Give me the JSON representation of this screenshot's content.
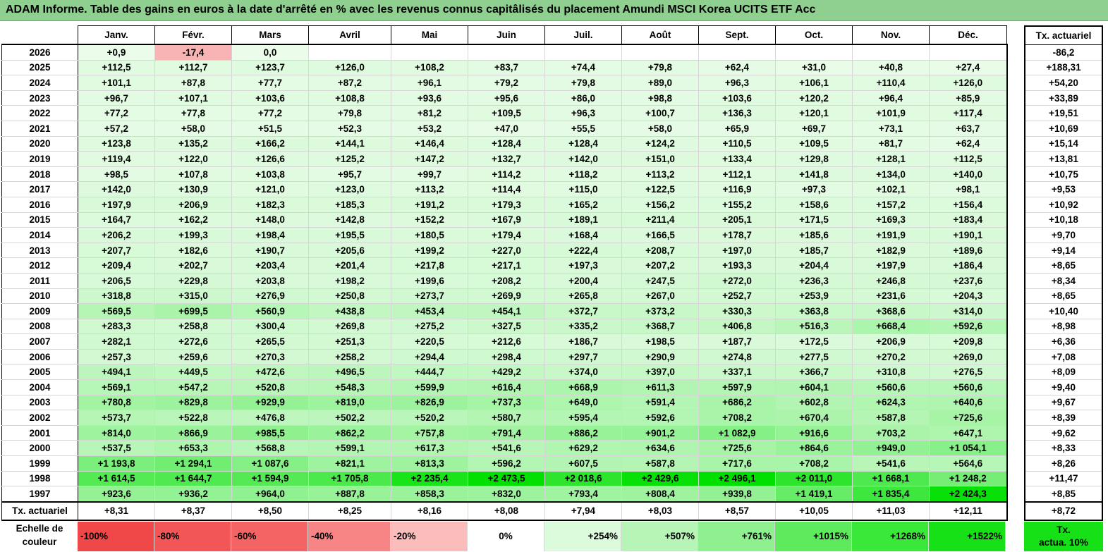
{
  "title": "ADAM Informe. Table des gains en euros à la date d'arrêté en % avec les revenus connus capitâlisés du placement Amundi MSCI Korea UCITS ETF Acc",
  "months": [
    "Janv.",
    "Févr.",
    "Mars",
    "Avril",
    "Mai",
    "Juin",
    "Juil.",
    "Août",
    "Sept.",
    "Oct.",
    "Nov.",
    "Déc."
  ],
  "actuarial_header": "Tx. actuariel",
  "colors": {
    "title_bg": "#8fcf8f",
    "negative": "#f8b4b4"
  },
  "rows": [
    {
      "year": "2026",
      "cells": [
        "+0,9",
        "-17,4",
        "0,0",
        "",
        "",
        "",
        "",
        "",
        "",
        "",
        "",
        ""
      ],
      "rate": "-86,2"
    },
    {
      "year": "2025",
      "cells": [
        "+112,5",
        "+112,7",
        "+123,7",
        "+126,0",
        "+108,2",
        "+83,7",
        "+74,4",
        "+79,8",
        "+62,4",
        "+31,0",
        "+40,8",
        "+27,4"
      ],
      "rate": "+188,31"
    },
    {
      "year": "2024",
      "cells": [
        "+101,1",
        "+87,8",
        "+77,7",
        "+87,2",
        "+96,1",
        "+79,2",
        "+79,8",
        "+89,0",
        "+96,3",
        "+106,1",
        "+110,4",
        "+126,0"
      ],
      "rate": "+54,20"
    },
    {
      "year": "2023",
      "cells": [
        "+96,7",
        "+107,1",
        "+103,6",
        "+108,8",
        "+93,6",
        "+95,6",
        "+86,0",
        "+98,8",
        "+103,6",
        "+120,2",
        "+96,4",
        "+85,9"
      ],
      "rate": "+33,89"
    },
    {
      "year": "2022",
      "cells": [
        "+77,2",
        "+77,8",
        "+77,2",
        "+79,8",
        "+81,2",
        "+109,5",
        "+96,3",
        "+100,7",
        "+136,3",
        "+120,1",
        "+101,9",
        "+117,4"
      ],
      "rate": "+19,51"
    },
    {
      "year": "2021",
      "cells": [
        "+57,2",
        "+58,0",
        "+51,5",
        "+52,3",
        "+53,2",
        "+47,0",
        "+55,5",
        "+58,0",
        "+65,9",
        "+69,7",
        "+73,1",
        "+63,7"
      ],
      "rate": "+10,69"
    },
    {
      "year": "2020",
      "cells": [
        "+123,8",
        "+135,2",
        "+166,2",
        "+144,1",
        "+146,4",
        "+128,4",
        "+128,4",
        "+124,2",
        "+110,5",
        "+109,5",
        "+81,7",
        "+62,4"
      ],
      "rate": "+15,14"
    },
    {
      "year": "2019",
      "cells": [
        "+119,4",
        "+122,0",
        "+126,6",
        "+125,2",
        "+147,2",
        "+132,7",
        "+142,0",
        "+151,0",
        "+133,4",
        "+129,8",
        "+128,1",
        "+112,5"
      ],
      "rate": "+13,81"
    },
    {
      "year": "2018",
      "cells": [
        "+98,5",
        "+107,8",
        "+103,8",
        "+95,7",
        "+99,7",
        "+114,2",
        "+118,2",
        "+113,2",
        "+112,1",
        "+141,8",
        "+134,0",
        "+140,0"
      ],
      "rate": "+10,75"
    },
    {
      "year": "2017",
      "cells": [
        "+142,0",
        "+130,9",
        "+121,0",
        "+123,0",
        "+113,2",
        "+114,4",
        "+115,0",
        "+122,5",
        "+116,9",
        "+97,3",
        "+102,1",
        "+98,1"
      ],
      "rate": "+9,53"
    },
    {
      "year": "2016",
      "cells": [
        "+197,9",
        "+206,9",
        "+182,3",
        "+185,3",
        "+191,2",
        "+179,3",
        "+165,2",
        "+156,2",
        "+155,2",
        "+158,6",
        "+157,2",
        "+156,4"
      ],
      "rate": "+10,92"
    },
    {
      "year": "2015",
      "cells": [
        "+164,7",
        "+162,2",
        "+148,0",
        "+142,8",
        "+152,2",
        "+167,9",
        "+189,1",
        "+211,4",
        "+205,1",
        "+171,5",
        "+169,3",
        "+183,4"
      ],
      "rate": "+10,18"
    },
    {
      "year": "2014",
      "cells": [
        "+206,2",
        "+199,3",
        "+198,4",
        "+195,5",
        "+180,5",
        "+179,4",
        "+168,4",
        "+166,5",
        "+178,7",
        "+185,6",
        "+191,9",
        "+190,1"
      ],
      "rate": "+9,70"
    },
    {
      "year": "2013",
      "cells": [
        "+207,7",
        "+182,6",
        "+190,7",
        "+205,6",
        "+199,2",
        "+227,0",
        "+222,4",
        "+208,7",
        "+197,0",
        "+185,7",
        "+182,9",
        "+189,6"
      ],
      "rate": "+9,14"
    },
    {
      "year": "2012",
      "cells": [
        "+209,4",
        "+202,7",
        "+203,4",
        "+201,4",
        "+217,8",
        "+217,1",
        "+197,3",
        "+207,2",
        "+193,3",
        "+204,4",
        "+197,9",
        "+186,4"
      ],
      "rate": "+8,65"
    },
    {
      "year": "2011",
      "cells": [
        "+206,5",
        "+229,8",
        "+203,8",
        "+198,2",
        "+199,6",
        "+208,2",
        "+200,4",
        "+247,5",
        "+272,0",
        "+236,3",
        "+246,8",
        "+237,6"
      ],
      "rate": "+8,34"
    },
    {
      "year": "2010",
      "cells": [
        "+318,8",
        "+315,0",
        "+276,9",
        "+250,8",
        "+273,7",
        "+269,9",
        "+265,8",
        "+267,0",
        "+252,7",
        "+253,9",
        "+231,6",
        "+204,3"
      ],
      "rate": "+8,65"
    },
    {
      "year": "2009",
      "cells": [
        "+569,5",
        "+699,5",
        "+560,9",
        "+438,8",
        "+453,4",
        "+454,1",
        "+372,7",
        "+373,2",
        "+330,3",
        "+363,8",
        "+368,6",
        "+314,0"
      ],
      "rate": "+10,40"
    },
    {
      "year": "2008",
      "cells": [
        "+283,3",
        "+258,8",
        "+300,4",
        "+269,8",
        "+275,2",
        "+327,5",
        "+335,2",
        "+368,7",
        "+406,8",
        "+516,3",
        "+668,4",
        "+592,6"
      ],
      "rate": "+8,98"
    },
    {
      "year": "2007",
      "cells": [
        "+282,1",
        "+272,6",
        "+265,5",
        "+251,3",
        "+220,5",
        "+212,6",
        "+186,7",
        "+198,5",
        "+187,7",
        "+172,5",
        "+206,9",
        "+209,8"
      ],
      "rate": "+6,36"
    },
    {
      "year": "2006",
      "cells": [
        "+257,3",
        "+259,6",
        "+270,3",
        "+258,2",
        "+294,4",
        "+298,4",
        "+297,7",
        "+290,9",
        "+274,8",
        "+277,5",
        "+270,2",
        "+269,0"
      ],
      "rate": "+7,08"
    },
    {
      "year": "2005",
      "cells": [
        "+494,1",
        "+449,5",
        "+472,6",
        "+496,5",
        "+444,7",
        "+429,2",
        "+374,0",
        "+397,0",
        "+337,1",
        "+366,7",
        "+310,8",
        "+276,5"
      ],
      "rate": "+8,09"
    },
    {
      "year": "2004",
      "cells": [
        "+569,1",
        "+547,2",
        "+520,8",
        "+548,3",
        "+599,9",
        "+616,4",
        "+668,9",
        "+611,3",
        "+597,9",
        "+604,1",
        "+560,6",
        "+560,6"
      ],
      "rate": "+9,40"
    },
    {
      "year": "2003",
      "cells": [
        "+780,8",
        "+829,8",
        "+929,9",
        "+819,0",
        "+826,9",
        "+737,3",
        "+649,0",
        "+591,4",
        "+686,2",
        "+602,8",
        "+624,3",
        "+640,6"
      ],
      "rate": "+9,67"
    },
    {
      "year": "2002",
      "cells": [
        "+573,7",
        "+522,8",
        "+476,8",
        "+502,2",
        "+520,2",
        "+580,7",
        "+595,4",
        "+592,6",
        "+708,2",
        "+670,4",
        "+587,8",
        "+725,6"
      ],
      "rate": "+8,39"
    },
    {
      "year": "2001",
      "cells": [
        "+814,0",
        "+866,9",
        "+985,5",
        "+862,2",
        "+757,8",
        "+791,4",
        "+886,2",
        "+901,2",
        "+1 082,9",
        "+916,6",
        "+703,2",
        "+647,1"
      ],
      "rate": "+9,62"
    },
    {
      "year": "2000",
      "cells": [
        "+537,5",
        "+653,3",
        "+568,8",
        "+599,1",
        "+617,3",
        "+541,6",
        "+629,2",
        "+634,6",
        "+725,6",
        "+864,6",
        "+949,0",
        "+1 054,1"
      ],
      "rate": "+8,33"
    },
    {
      "year": "1999",
      "cells": [
        "+1 193,8",
        "+1 294,1",
        "+1 087,6",
        "+821,1",
        "+813,3",
        "+596,2",
        "+607,5",
        "+587,8",
        "+717,6",
        "+708,2",
        "+541,6",
        "+564,6"
      ],
      "rate": "+8,26"
    },
    {
      "year": "1998",
      "cells": [
        "+1 614,5",
        "+1 644,7",
        "+1 594,9",
        "+1 705,8",
        "+2 235,4",
        "+2 473,5",
        "+2 018,6",
        "+2 429,6",
        "+2 496,1",
        "+2 011,0",
        "+1 668,1",
        "+1 248,2"
      ],
      "rate": "+11,47"
    },
    {
      "year": "1997",
      "cells": [
        "+923,6",
        "+936,2",
        "+964,0",
        "+887,8",
        "+858,3",
        "+832,0",
        "+793,4",
        "+808,4",
        "+939,8",
        "+1 419,1",
        "+1 835,4",
        "+2 424,3"
      ],
      "rate": "+8,85"
    }
  ],
  "actuarial_row": {
    "label": "Tx. actuariel",
    "cells": [
      "+8,31",
      "+8,37",
      "+8,50",
      "+8,25",
      "+8,16",
      "+8,08",
      "+7,94",
      "+8,03",
      "+8,57",
      "+10,05",
      "+11,03",
      "+12,11"
    ],
    "rate": "+8,72"
  },
  "scale": {
    "label_line1": "Echelle de",
    "label_line2": "couleur",
    "items": [
      {
        "text": "-100%",
        "color": "#f04848"
      },
      {
        "text": "-80%",
        "color": "#f35656"
      },
      {
        "text": "-60%",
        "color": "#f56464"
      },
      {
        "text": "-40%",
        "color": "#f88585"
      },
      {
        "text": "-20%",
        "color": "#fbbcbc"
      },
      {
        "text": "0%",
        "color": "#ffffff"
      },
      {
        "text": "+254%",
        "color": "#dcfadc"
      },
      {
        "text": "+507%",
        "color": "#b6f5b6"
      },
      {
        "text": "+761%",
        "color": "#8ef08e"
      },
      {
        "text": "+1015%",
        "color": "#5deb5d"
      },
      {
        "text": "+1268%",
        "color": "#3ae83a"
      },
      {
        "text": "+1522%",
        "color": "#16e016"
      }
    ],
    "actuarial_line1": "Tx.",
    "actuarial_line2": "actua. 10%",
    "actuarial_color": "#16e016"
  }
}
